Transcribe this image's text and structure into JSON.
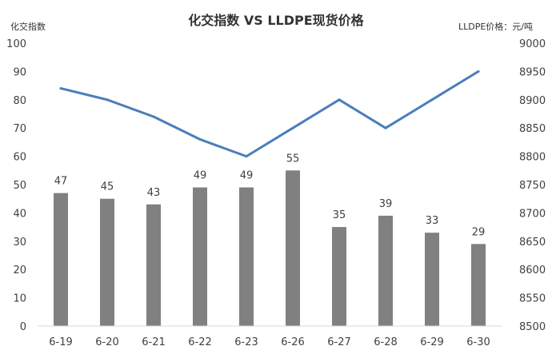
{
  "chart_data": {
    "type": "bar",
    "title": "化交指数 VS LLDPE现货价格",
    "left_axis_label": "化交指数",
    "right_axis_label": "LLDPE价格：元/吨",
    "categories": [
      "6-19",
      "6-20",
      "6-21",
      "6-22",
      "6-23",
      "6-26",
      "6-27",
      "6-28",
      "6-29",
      "6-30"
    ],
    "left_axis": {
      "min": 0,
      "max": 100,
      "step": 10,
      "ticks": [
        "0",
        "10",
        "20",
        "30",
        "40",
        "50",
        "60",
        "70",
        "80",
        "90",
        "100"
      ]
    },
    "right_axis": {
      "min": 8500,
      "max": 9000,
      "step": 50,
      "ticks": [
        "8500",
        "8550",
        "8600",
        "8650",
        "8700",
        "8750",
        "8800",
        "8850",
        "8900",
        "8950",
        "9000"
      ]
    },
    "series": [
      {
        "type": "bar",
        "axis": "left",
        "values": [
          47,
          45,
          43,
          49,
          49,
          55,
          35,
          39,
          33,
          29
        ],
        "labels": [
          "47",
          "45",
          "43",
          "49",
          "49",
          "55",
          "35",
          "39",
          "33",
          "29"
        ],
        "color": "#808080"
      },
      {
        "type": "line",
        "axis": "right",
        "values": [
          8920,
          8900,
          8870,
          8830,
          8800,
          8850,
          8900,
          8850,
          8900,
          8950
        ],
        "color": "#4a7ebb"
      }
    ],
    "grid": false,
    "legend": "none"
  }
}
